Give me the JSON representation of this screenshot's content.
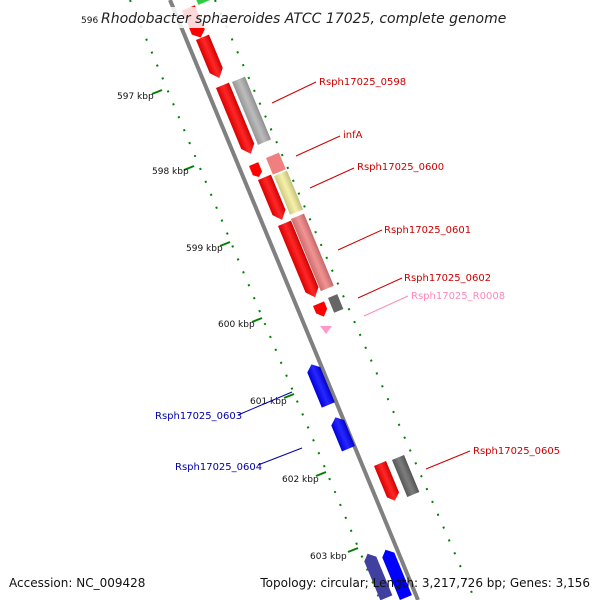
{
  "title": "Rhodobacter sphaeroides ATCC 17025, complete genome",
  "accession": "Accession: NC_009428",
  "topology": "Topology: circular; Length: 3,217,726 bp; Genes: 3,156",
  "ticks": [
    "596",
    "597 kbp",
    "598 kbp",
    "599 kbp",
    "600 kbp",
    "601 kbp",
    "602 kbp",
    "603 kbp"
  ],
  "labels": {
    "rsph0598": "Rsph17025_0598",
    "infA": "infA",
    "rsph0600": "Rsph17025_0600",
    "rsph0601": "Rsph17025_0601",
    "rsph0602": "Rsph17025_0602",
    "r0008": "Rsph17025_R0008",
    "rsph0603": "Rsph17025_0603",
    "rsph0604": "Rsph17025_0604",
    "rsph0605": "Rsph17025_0605"
  },
  "colors": {
    "backbone": "#808080",
    "gene_red": "#ff0000",
    "gene_pink": "#f08080",
    "gene_yellow": "#f3ee9a",
    "gene_grey": "#b0b0b0",
    "gene_dark": "#666666",
    "gene_blue": "#0000ff",
    "rna_pink": "#ff99cc",
    "label_red": "#cc0000",
    "label_pink": "#ff88bb",
    "label_blue": "#0000aa",
    "ticks_green": "#008000"
  }
}
